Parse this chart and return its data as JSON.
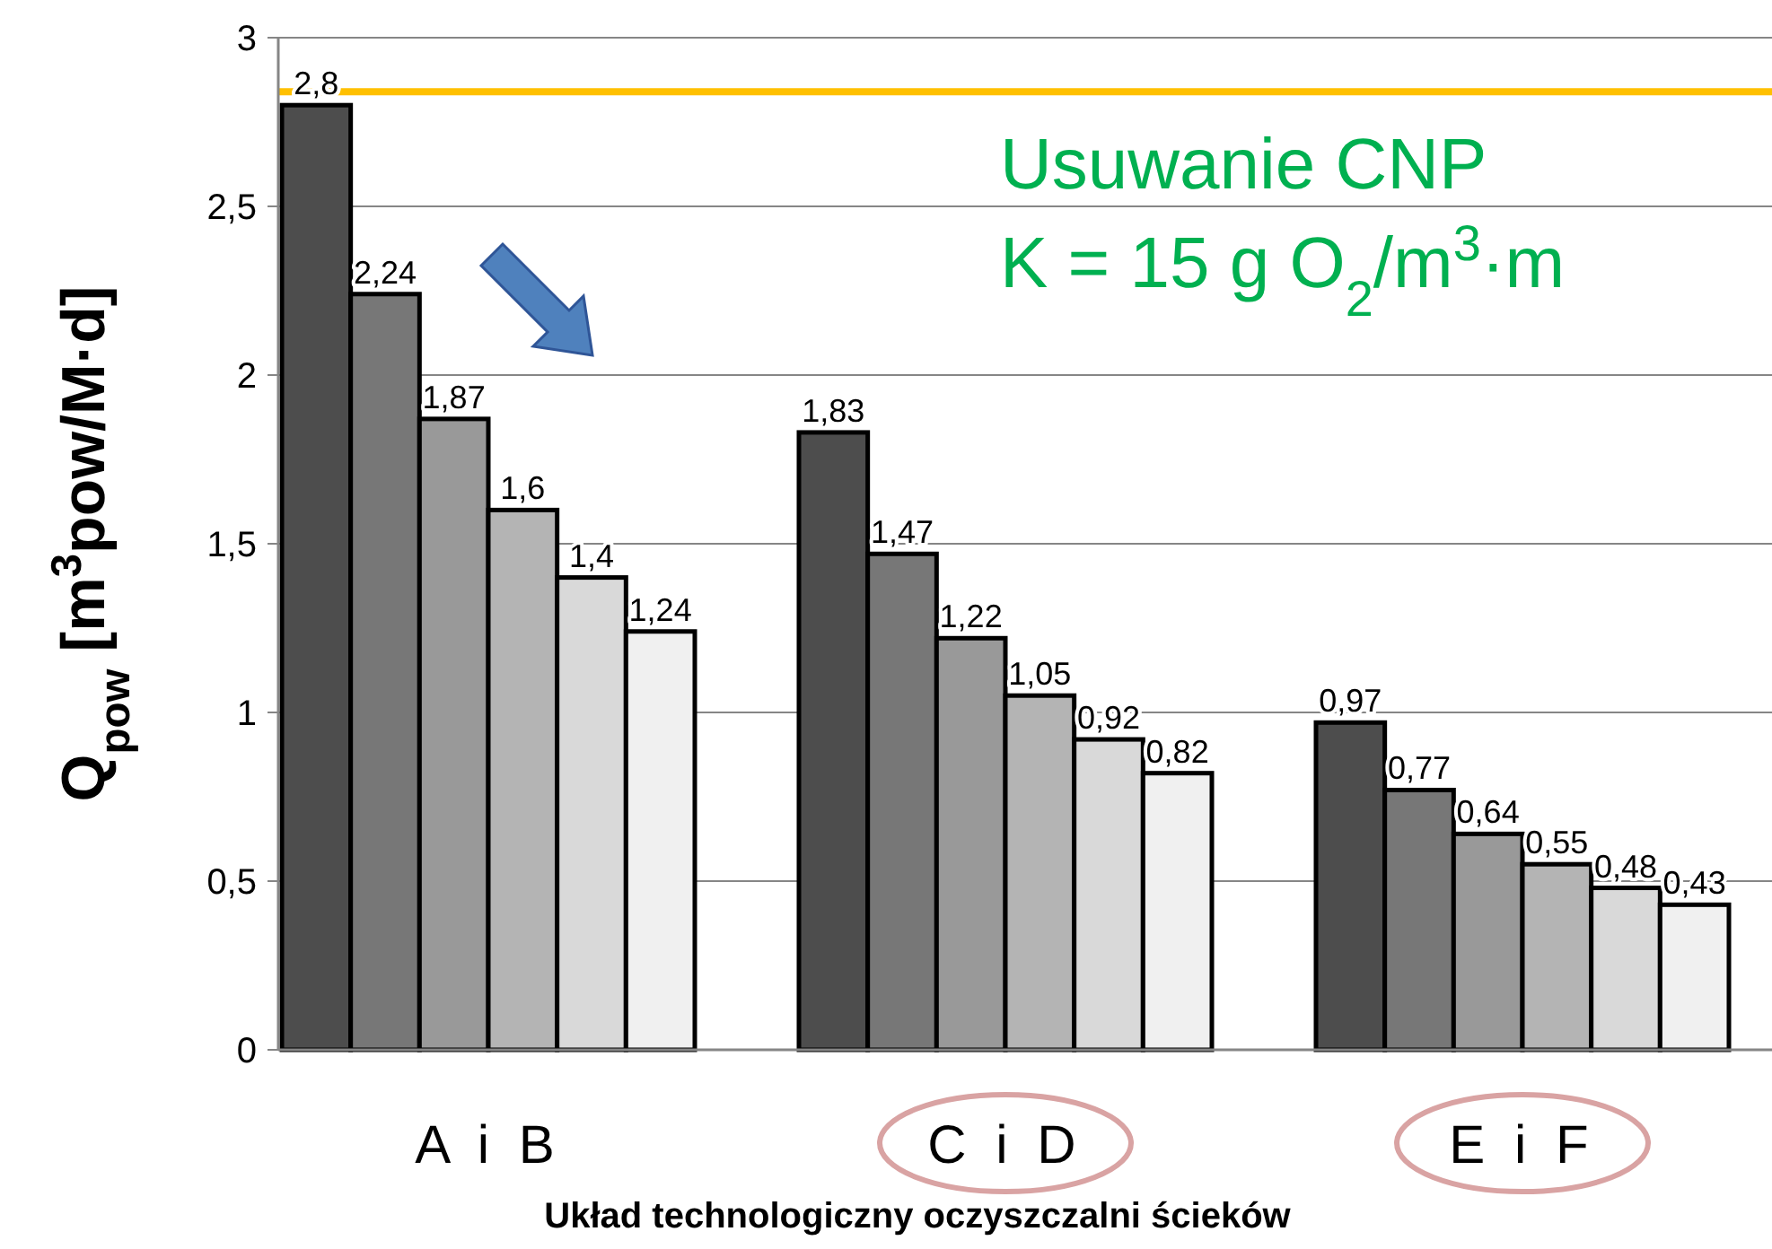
{
  "chart_data": {
    "type": "bar",
    "ylabel": "Q$_{pow}$ [m$^{3}$pow/M·d]",
    "xlabel": "Układ technologiczny oczyszczalni ścieków",
    "categories": [
      "A i B",
      "C i D",
      "E i F"
    ],
    "series": [
      {
        "color": "#4d4d4d",
        "values": [
          2.8,
          1.83,
          0.97
        ],
        "value_labels": [
          "2,8",
          "1,83",
          "0,97"
        ]
      },
      {
        "color": "#777777",
        "values": [
          2.24,
          1.47,
          0.77
        ],
        "value_labels": [
          "2,24",
          "1,47",
          "0,77"
        ]
      },
      {
        "color": "#999999",
        "values": [
          1.87,
          1.22,
          0.64
        ],
        "value_labels": [
          "1,87",
          "1,22",
          "0,64"
        ]
      },
      {
        "color": "#b4b4b4",
        "values": [
          1.6,
          1.05,
          0.55
        ],
        "value_labels": [
          "1,6",
          "1,05",
          "0,55"
        ]
      },
      {
        "color": "#d9d9d9",
        "values": [
          1.4,
          0.92,
          0.48
        ],
        "value_labels": [
          "1,4",
          "0,92",
          "0,48"
        ]
      },
      {
        "color": "#f0f0f0",
        "values": [
          1.24,
          0.82,
          0.43
        ],
        "value_labels": [
          "1,24",
          "0,82",
          "0,43"
        ]
      }
    ],
    "ylim": [
      0,
      3
    ],
    "yticks": [
      0,
      {
        "value": 0.5,
        "label": "0,5"
      },
      1,
      {
        "value": 1.5,
        "label": "1,5"
      },
      2,
      {
        "value": 2.5,
        "label": "2,5"
      },
      3
    ],
    "grid": "y",
    "ref_lines": [
      {
        "axis": "y",
        "value": 2.84,
        "color": "#ffc000"
      }
    ],
    "annotations": [
      "Usuwanie CNP",
      "K = 15 g O$_{2}$/m$^{3}$·m"
    ]
  }
}
